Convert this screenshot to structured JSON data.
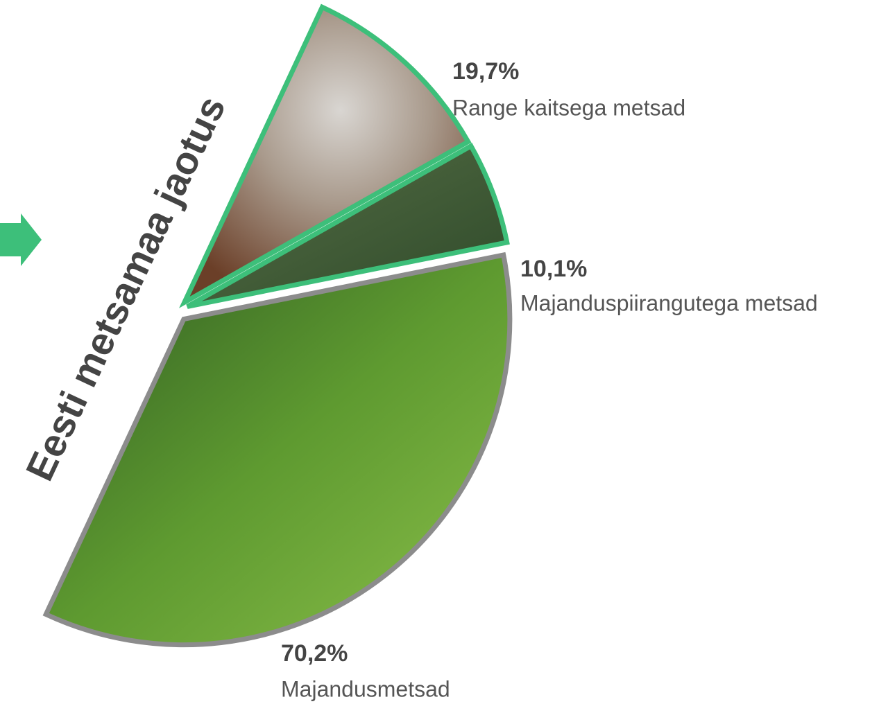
{
  "chart_data": {
    "type": "pie",
    "title": "Eesti metsamaa jaotus",
    "categories": [
      "Range kaitsega metsad",
      "Majanduspiirangutega metsad",
      "Majandusmetsad"
    ],
    "values": [
      19.7,
      10.1,
      70.2
    ],
    "value_labels": [
      "19,7%",
      "10,1%",
      "70,2%"
    ],
    "colors": [
      "#8a6a55",
      "#3e5a34",
      "#4f8a2c"
    ],
    "edge_colors": [
      "#3dbf7a",
      "#3dbf7a",
      "#8c8c8c"
    ]
  }
}
